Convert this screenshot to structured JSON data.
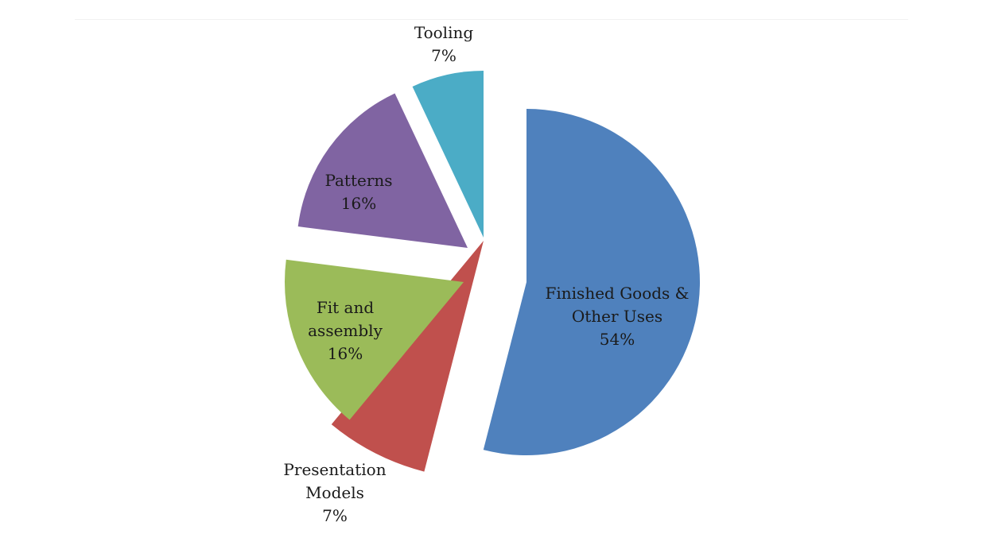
{
  "chart_data": {
    "type": "pie",
    "title": "",
    "slices": [
      {
        "label_lines": [
          "Finished Goods &",
          "Other Uses"
        ],
        "value_label": "54%",
        "value": 54,
        "color": "#4f81bd"
      },
      {
        "label_lines": [
          "Presentation",
          "Models"
        ],
        "value_label": "7%",
        "value": 7,
        "color": "#c0504d"
      },
      {
        "label_lines": [
          "Fit and",
          "assembly"
        ],
        "value_label": "16%",
        "value": 16,
        "color": "#9bbb59"
      },
      {
        "label_lines": [
          "Patterns"
        ],
        "value_label": "16%",
        "value": 16,
        "color": "#8064a2"
      },
      {
        "label_lines": [
          "Tooling"
        ],
        "value_label": "7%",
        "value": 7,
        "color": "#4bacc6"
      }
    ],
    "exploded": true,
    "legend": "none"
  }
}
